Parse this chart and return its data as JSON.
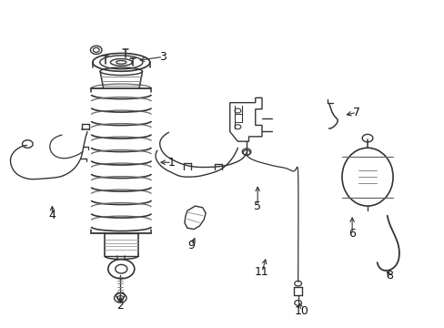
{
  "background_color": "#ffffff",
  "line_color": "#333333",
  "figsize": [
    4.89,
    3.6
  ],
  "dpi": 100,
  "label_fontsize": 9,
  "label_color": "#111111",
  "arrow_color": "#333333",
  "parts_labels": {
    "1": [
      0.385,
      0.505,
      0.352,
      0.505
    ],
    "2": [
      0.268,
      0.062,
      0.268,
      0.1
    ],
    "3": [
      0.365,
      0.832,
      0.305,
      0.82
    ],
    "4": [
      0.113,
      0.34,
      0.113,
      0.38
    ],
    "5": [
      0.58,
      0.37,
      0.58,
      0.44
    ],
    "6": [
      0.795,
      0.285,
      0.795,
      0.345
    ],
    "7": [
      0.805,
      0.66,
      0.775,
      0.65
    ],
    "8": [
      0.88,
      0.155,
      0.87,
      0.175
    ],
    "9": [
      0.43,
      0.248,
      0.44,
      0.28
    ],
    "10": [
      0.68,
      0.045,
      0.672,
      0.08
    ],
    "11": [
      0.59,
      0.165,
      0.6,
      0.215
    ]
  }
}
